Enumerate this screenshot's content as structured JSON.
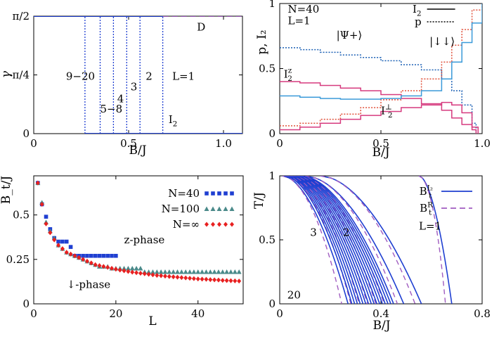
{
  "chart_data": [
    {
      "type": "line",
      "panel": "top-left",
      "xlabel": "B/J",
      "ylabel": "γ",
      "xlim": [
        0,
        1.1
      ],
      "ylim": [
        0,
        1.5708
      ],
      "xticks": [
        {
          "v": 0,
          "label": "0"
        },
        {
          "v": 0.5,
          "label": "0.5"
        },
        {
          "v": 1.0,
          "label": "1.0"
        }
      ],
      "yticks": [
        {
          "v": 0,
          "label": "0"
        },
        {
          "v": 0.7854,
          "label": "π/4"
        },
        {
          "v": 1.5708,
          "label": "π/2"
        }
      ],
      "series": [
        {
          "name": "γ (L=1)",
          "style": "solid",
          "color": "#1f3fd1",
          "x": [
            0,
            0.68
          ],
          "y": [
            1.5708,
            1.5708
          ]
        },
        {
          "name": "γ (D)",
          "style": "dashed",
          "color": "#a05cc0",
          "x": [
            0.68,
            1.1
          ],
          "y": [
            1.5708,
            1.5708
          ]
        },
        {
          "name": "γ = 0",
          "style": "solid",
          "color": "#1f3fd1",
          "x": [
            0.27,
            1.1
          ],
          "y": [
            0,
            0
          ]
        }
      ],
      "transitions": [
        0.27,
        0.35,
        0.42,
        0.49,
        0.56,
        0.68
      ],
      "annotations": [
        {
          "text": "9−20",
          "x": 0.17,
          "y": 0.72
        },
        {
          "text": "5−8",
          "x": 0.35,
          "y": 0.28
        },
        {
          "text": "4",
          "x": 0.44,
          "y": 0.42
        },
        {
          "text": "3",
          "x": 0.51,
          "y": 0.58
        },
        {
          "text": "2",
          "x": 0.59,
          "y": 0.72
        },
        {
          "text": "L=1",
          "x": 0.73,
          "y": 0.72
        },
        {
          "text": "D",
          "x": 0.86,
          "y": 1.38
        },
        {
          "text": "I",
          "sub": "2",
          "x": 0.71,
          "y": 0.14
        }
      ]
    },
    {
      "type": "line",
      "panel": "top-right",
      "xlabel": "B/J",
      "ylabel": "p, I₂",
      "xlim": [
        0,
        1.0
      ],
      "ylim": [
        0,
        1.0
      ],
      "xticks": [
        {
          "v": 0,
          "label": "0"
        },
        {
          "v": 0.5,
          "label": "0.5"
        },
        {
          "v": 1.0,
          "label": "1.0"
        }
      ],
      "yticks": [
        {
          "v": 0,
          "label": "0"
        },
        {
          "v": 0.5,
          "label": "0.5"
        },
        {
          "v": 1.0,
          "label": "1"
        }
      ],
      "legend": [
        {
          "label": "I",
          "sub": "2",
          "style": "solid"
        },
        {
          "label": "p",
          "style": "dotted"
        }
      ],
      "series": [
        {
          "name": "p |Ψ+⟩",
          "style": "dotted",
          "color": "#1a5fb4",
          "step": true,
          "x": [
            0,
            0.1,
            0.2,
            0.3,
            0.4,
            0.5,
            0.6,
            0.7,
            0.8,
            0.85,
            0.9,
            0.95,
            0.97
          ],
          "y": [
            0.66,
            0.645,
            0.625,
            0.605,
            0.585,
            0.56,
            0.53,
            0.49,
            0.42,
            0.33,
            0.22,
            0.08,
            0.0
          ]
        },
        {
          "name": "p |↓↓⟩",
          "style": "dotted",
          "color": "#e0503a",
          "step": true,
          "x": [
            0,
            0.1,
            0.2,
            0.3,
            0.4,
            0.5,
            0.6,
            0.7,
            0.8,
            0.85,
            0.9,
            0.95,
            1.0
          ],
          "y": [
            0.06,
            0.08,
            0.11,
            0.15,
            0.2,
            0.26,
            0.33,
            0.42,
            0.55,
            0.68,
            0.8,
            0.95,
            1.0
          ]
        },
        {
          "name": "I₂ᶻ",
          "style": "solid",
          "color": "#d63a7e",
          "step": true,
          "x": [
            0,
            0.1,
            0.2,
            0.3,
            0.4,
            0.5,
            0.6,
            0.7,
            0.8,
            0.85,
            0.9,
            0.95,
            0.97
          ],
          "y": [
            0.4,
            0.39,
            0.37,
            0.35,
            0.33,
            0.3,
            0.27,
            0.23,
            0.18,
            0.12,
            0.07,
            0.03,
            0.0
          ]
        },
        {
          "name": "I₂ total",
          "style": "solid",
          "color": "#3a9ad9",
          "step": true,
          "x": [
            0,
            0.1,
            0.2,
            0.3,
            0.4,
            0.5,
            0.6,
            0.7,
            0.8,
            0.85,
            0.9,
            0.95,
            1.0
          ],
          "y": [
            0.29,
            0.28,
            0.27,
            0.265,
            0.265,
            0.27,
            0.29,
            0.33,
            0.42,
            0.55,
            0.7,
            0.85,
            1.0
          ]
        },
        {
          "name": "I₂⊥",
          "style": "solid",
          "color": "#d63a7e",
          "step": true,
          "x": [
            0,
            0.1,
            0.2,
            0.3,
            0.4,
            0.5,
            0.6,
            0.7,
            0.8,
            0.85,
            0.9,
            0.95,
            0.98
          ],
          "y": [
            0.03,
            0.05,
            0.08,
            0.11,
            0.14,
            0.17,
            0.2,
            0.22,
            0.24,
            0.22,
            0.16,
            0.05,
            0.0
          ]
        }
      ],
      "annotations": [
        {
          "text": "N=40",
          "x": 0.04,
          "y": 0.93
        },
        {
          "text": "L=1",
          "x": 0.04,
          "y": 0.84
        },
        {
          "text": "|Ψ+⟩",
          "x": 0.28,
          "y": 0.73
        },
        {
          "text": "|↓↓⟩",
          "x": 0.74,
          "y": 0.68
        },
        {
          "text": "I",
          "sub": "2",
          "sup": "z",
          "x": 0.02,
          "y": 0.43
        },
        {
          "text": "I",
          "sub": "2",
          "sup": "⊥",
          "x": 0.5,
          "y": 0.15
        }
      ]
    },
    {
      "type": "scatter",
      "panel": "bottom-left",
      "xlabel": "L",
      "ylabel": "B_t/J",
      "xlim": [
        0,
        51
      ],
      "ylim": [
        0,
        0.72
      ],
      "xticks": [
        {
          "v": 0,
          "label": "0"
        },
        {
          "v": 20,
          "label": "20"
        },
        {
          "v": 40,
          "label": "40"
        }
      ],
      "yticks": [
        {
          "v": 0,
          "label": "0"
        },
        {
          "v": 0.25,
          "label": "0.25"
        },
        {
          "v": 0.5,
          "label": "0.5"
        }
      ],
      "series": [
        {
          "name": "N=40",
          "marker": "square",
          "color": "#1f3fd1",
          "x": [
            1,
            2,
            3,
            4,
            5,
            6,
            7,
            8,
            9,
            10,
            11,
            12,
            13,
            14,
            15,
            16,
            17,
            18,
            19,
            20
          ],
          "y": [
            0.68,
            0.56,
            0.49,
            0.42,
            0.37,
            0.35,
            0.35,
            0.35,
            0.32,
            0.27,
            0.27,
            0.27,
            0.27,
            0.27,
            0.27,
            0.27,
            0.27,
            0.27,
            0.27,
            0.27
          ]
        },
        {
          "name": "N=100",
          "marker": "triangle",
          "color": "#4a8a8a",
          "x": [
            1,
            2,
            3,
            4,
            5,
            6,
            7,
            8,
            9,
            10,
            11,
            12,
            13,
            14,
            15,
            16,
            17,
            18,
            19,
            20,
            21,
            22,
            23,
            24,
            25,
            26,
            27,
            28,
            29,
            30,
            31,
            32,
            33,
            34,
            35,
            36,
            37,
            38,
            39,
            40,
            41,
            42,
            43,
            44,
            45,
            46,
            47,
            48,
            49,
            50
          ],
          "y": [
            0.68,
            0.57,
            0.46,
            0.41,
            0.37,
            0.33,
            0.31,
            0.29,
            0.28,
            0.27,
            0.26,
            0.25,
            0.24,
            0.23,
            0.22,
            0.21,
            0.21,
            0.21,
            0.2,
            0.2,
            0.2,
            0.2,
            0.2,
            0.2,
            0.2,
            0.2,
            0.18,
            0.18,
            0.18,
            0.18,
            0.18,
            0.18,
            0.18,
            0.18,
            0.18,
            0.18,
            0.18,
            0.18,
            0.18,
            0.18,
            0.18,
            0.18,
            0.18,
            0.18,
            0.18,
            0.18,
            0.18,
            0.18,
            0.18,
            0.18
          ]
        },
        {
          "name": "N=∞",
          "marker": "diamond",
          "color": "#e82020",
          "x": [
            1,
            2,
            3,
            4,
            5,
            6,
            7,
            8,
            9,
            10,
            11,
            12,
            13,
            14,
            15,
            16,
            17,
            18,
            19,
            20,
            21,
            22,
            23,
            24,
            25,
            26,
            27,
            28,
            29,
            30,
            31,
            32,
            33,
            34,
            35,
            36,
            37,
            38,
            39,
            40,
            41,
            42,
            43,
            44,
            45,
            46,
            47,
            48,
            49,
            50
          ],
          "y": [
            0.68,
            0.56,
            0.45,
            0.4,
            0.36,
            0.33,
            0.31,
            0.29,
            0.28,
            0.27,
            0.26,
            0.25,
            0.24,
            0.23,
            0.22,
            0.215,
            0.21,
            0.205,
            0.2,
            0.195,
            0.19,
            0.186,
            0.182,
            0.178,
            0.175,
            0.172,
            0.169,
            0.166,
            0.163,
            0.16,
            0.158,
            0.156,
            0.154,
            0.152,
            0.15,
            0.148,
            0.146,
            0.144,
            0.142,
            0.14,
            0.139,
            0.138,
            0.136,
            0.135,
            0.134,
            0.132,
            0.131,
            0.13,
            0.129,
            0.128
          ]
        }
      ],
      "annotations": [
        {
          "text": "z-phase",
          "x": 22,
          "y": 0.34
        },
        {
          "text": "↓-phase",
          "x": 8,
          "y": 0.09
        }
      ]
    },
    {
      "type": "line",
      "panel": "bottom-right",
      "xlabel": "B/J",
      "ylabel": "T/J",
      "xlim": [
        0,
        0.8
      ],
      "ylim": [
        0,
        1.0
      ],
      "xticks": [
        {
          "v": 0,
          "label": "0"
        },
        {
          "v": 0.4,
          "label": "0.4"
        },
        {
          "v": 0.8,
          "label": "0.8"
        }
      ],
      "yticks": [
        {
          "v": 0,
          "label": "0"
        },
        {
          "v": 0.5,
          "label": "0.5"
        },
        {
          "v": 1.0,
          "label": "1"
        }
      ],
      "legend": [
        {
          "label": "B",
          "sub": "t",
          "sup": "I₂",
          "style": "solid",
          "color": "#1f3fd1"
        },
        {
          "label": "B",
          "sub": "t",
          "sup": "R",
          "style": "dashed",
          "color": "#a05cc0"
        }
      ],
      "series": [
        {
          "name": "L=1",
          "color": "#1f3fd1",
          "style": "solid",
          "bt": 0.68,
          "x0": 0.55
        },
        {
          "name": "L=2",
          "color": "#1f3fd1",
          "style": "solid",
          "bt": 0.56,
          "x0": 0.16
        },
        {
          "name": "L=3",
          "color": "#1f3fd1",
          "style": "solid",
          "bt": 0.49,
          "x0": 0.1
        },
        {
          "name": "L=20",
          "color": "#1f3fd1",
          "style": "solid",
          "bt": 0.27,
          "x0": 0.01
        }
      ],
      "annotations": [
        {
          "text": "L=1",
          "x": 0.55,
          "y": 0.58
        },
        {
          "text": "2",
          "x": 0.25,
          "y": 0.53
        },
        {
          "text": "3",
          "x": 0.12,
          "y": 0.53
        },
        {
          "text": "20",
          "x": 0.03,
          "y": 0.04
        }
      ]
    }
  ]
}
